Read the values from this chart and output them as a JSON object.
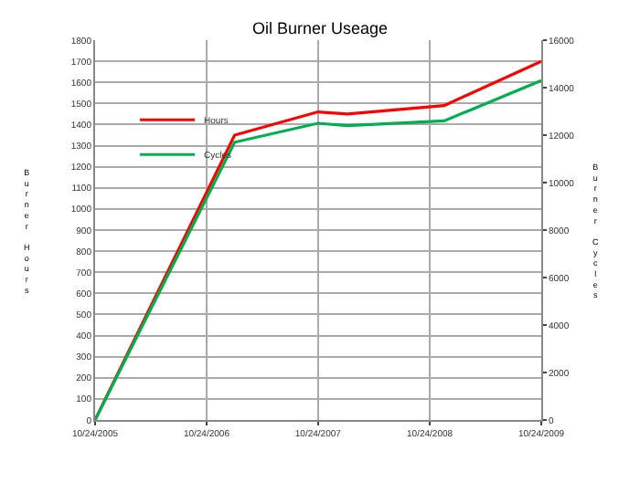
{
  "chart_data": {
    "type": "line",
    "title": "Oil Burner Useage",
    "ylabel": "Burner Hours",
    "y2label": "Burner Cycles",
    "x": [
      "2005-10-24",
      "2007-01-24",
      "2007-10-24",
      "2008-01-28",
      "2008-12-10",
      "2009-10-24"
    ],
    "series": [
      {
        "name": "Hours",
        "color": "#ff0000",
        "values": [
          0,
          1350,
          1460,
          1450,
          1490,
          1700
        ]
      },
      {
        "name": "Cycles",
        "color": "#00b050",
        "axis": "y2",
        "values": [
          0,
          11700,
          12500,
          12400,
          12600,
          14300
        ]
      }
    ],
    "xlim": [
      "2005-10-24",
      "2009-10-24"
    ],
    "xticks": [
      {
        "value": "2005-10-24",
        "label": "10/24/2005"
      },
      {
        "value": "2006-10-24",
        "label": "10/24/2006"
      },
      {
        "value": "2007-10-24",
        "label": "10/24/2007"
      },
      {
        "value": "2008-10-24",
        "label": "10/24/2008"
      },
      {
        "value": "2009-10-24",
        "label": "10/24/2009"
      }
    ],
    "ylim": [
      0,
      1800
    ],
    "yticks": [
      0,
      100,
      200,
      300,
      400,
      500,
      600,
      700,
      800,
      900,
      1000,
      1100,
      1200,
      1300,
      1400,
      1500,
      1600,
      1700,
      1800
    ],
    "y2lim": [
      0,
      16000
    ],
    "y2ticks": [
      0,
      2000,
      4000,
      6000,
      8000,
      10000,
      12000,
      14000,
      16000
    ],
    "grid": true,
    "legend": "top left",
    "marker": "none",
    "line_style": "solid"
  }
}
